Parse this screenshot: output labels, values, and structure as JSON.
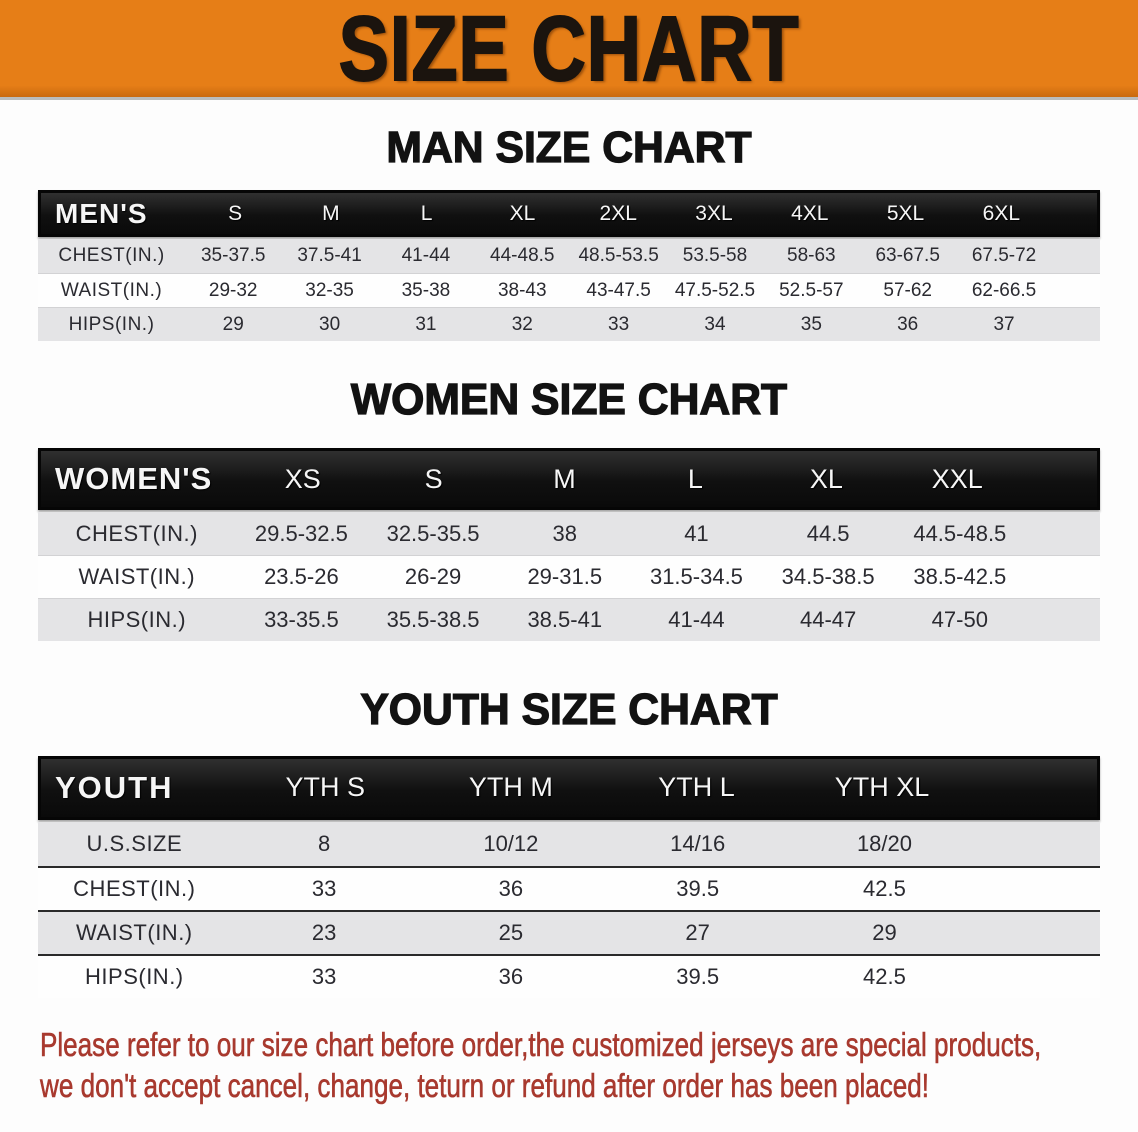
{
  "banner": {
    "title": "SIZE CHART"
  },
  "colors": {
    "accent_orange": "#e67e17",
    "header_bar_black": "#121212",
    "stripe_gray": "#e4e4e6",
    "warning_red": "#a8392e"
  },
  "sections": [
    {
      "heading": "MAN SIZE CHART",
      "table": {
        "label": "MEN'S",
        "columns": [
          "S",
          "M",
          "L",
          "XL",
          "2XL",
          "3XL",
          "4XL",
          "5XL",
          "6XL"
        ],
        "rows": [
          {
            "label": "CHEST(IN.)",
            "values": [
              "35-37.5",
              "37.5-41",
              "41-44",
              "44-48.5",
              "48.5-53.5",
              "53.5-58",
              "58-63",
              "63-67.5",
              "67.5-72"
            ]
          },
          {
            "label": "WAIST(IN.)",
            "values": [
              "29-32",
              "32-35",
              "35-38",
              "38-43",
              "43-47.5",
              "47.5-52.5",
              "52.5-57",
              "57-62",
              "62-66.5"
            ]
          },
          {
            "label": "HIPS(IN.)",
            "values": [
              "29",
              "30",
              "31",
              "32",
              "33",
              "34",
              "35",
              "36",
              "37"
            ]
          }
        ]
      }
    },
    {
      "heading": "WOMEN SIZE CHART",
      "table": {
        "label": "WOMEN'S",
        "columns": [
          "XS",
          "S",
          "M",
          "L",
          "XL",
          "XXL"
        ],
        "rows": [
          {
            "label": "CHEST(IN.)",
            "values": [
              "29.5-32.5",
              "32.5-35.5",
              "38",
              "41",
              "44.5",
              "44.5-48.5"
            ]
          },
          {
            "label": "WAIST(IN.)",
            "values": [
              "23.5-26",
              "26-29",
              "29-31.5",
              "31.5-34.5",
              "34.5-38.5",
              "38.5-42.5"
            ]
          },
          {
            "label": "HIPS(IN.)",
            "values": [
              "33-35.5",
              "35.5-38.5",
              "38.5-41",
              "41-44",
              "44-47",
              "47-50"
            ]
          }
        ]
      }
    },
    {
      "heading": "YOUTH SIZE CHART",
      "table": {
        "label": "YOUTH",
        "columns": [
          "YTH S",
          "YTH M",
          "YTH L",
          "YTH XL"
        ],
        "rows": [
          {
            "label": "U.S.SIZE",
            "values": [
              "8",
              "10/12",
              "14/16",
              "18/20"
            ]
          },
          {
            "label": "CHEST(IN.)",
            "values": [
              "33",
              "36",
              "39.5",
              "42.5"
            ]
          },
          {
            "label": "WAIST(IN.)",
            "values": [
              "23",
              "25",
              "27",
              "29"
            ]
          },
          {
            "label": "HIPS(IN.)",
            "values": [
              "33",
              "36",
              "39.5",
              "42.5"
            ]
          }
        ]
      }
    }
  ],
  "disclaimer": {
    "line1": "Please refer to our size chart before order,the customized jerseys are special products,",
    "line2": "we don't accept cancel, change, teturn or refund after order has been placed!"
  }
}
